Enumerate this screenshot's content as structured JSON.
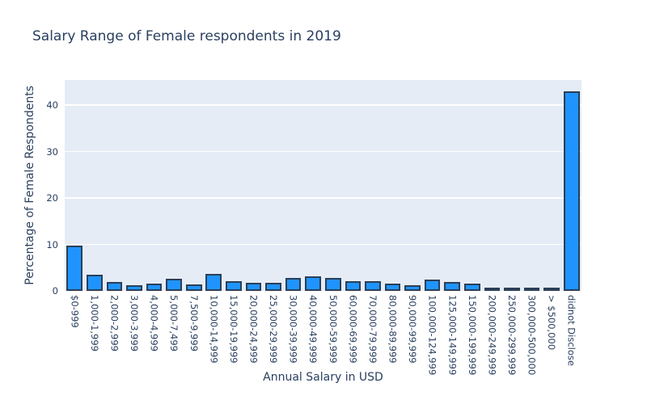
{
  "chart_data": {
    "type": "bar",
    "title": "Salary Range of Female respondents in 2019",
    "xlabel": "Annual Salary in USD",
    "ylabel": "Percentage of Female Respondents",
    "categories": [
      "$0-999",
      "1,000-1,999",
      "2,000-2,999",
      "3,000-3,999",
      "4,000-4,999",
      "5,000-7,499",
      "7,500-9,999",
      "10,000-14,999",
      "15,000-19,999",
      "20,000-24,999",
      "25,000-29,999",
      "30,000-39,999",
      "40,000-49,999",
      "50,000-59,999",
      "60,000-69,999",
      "70,000-79,999",
      "80,000-89,999",
      "90,000-99,999",
      "100,000-124,999",
      "125,000-149,999",
      "150,000-199,999",
      "200,000-249,999",
      "250,000-299,999",
      "300,000-500,000",
      "> $500,000",
      "didnot Disclose"
    ],
    "values": [
      9.7,
      3.5,
      1.9,
      1.3,
      1.6,
      2.6,
      1.4,
      3.7,
      2.1,
      1.7,
      1.8,
      2.8,
      3.2,
      2.7,
      2.1,
      2.1,
      1.5,
      1.3,
      2.4,
      1.9,
      1.6,
      0.7,
      0.2,
      0.6,
      0.15,
      43.0
    ],
    "yticks": [
      0,
      10,
      20,
      30,
      40
    ],
    "ylim": [
      0,
      45.4
    ],
    "grid": true,
    "legend": "none",
    "colors": {
      "bar_fill": "#1f94ff",
      "bar_outline": "#2b3f57",
      "plot_background": "#e5ecf6",
      "gridline": "#ffffff",
      "text": "#2a3f5f",
      "figure_background": "#ffffff"
    }
  }
}
